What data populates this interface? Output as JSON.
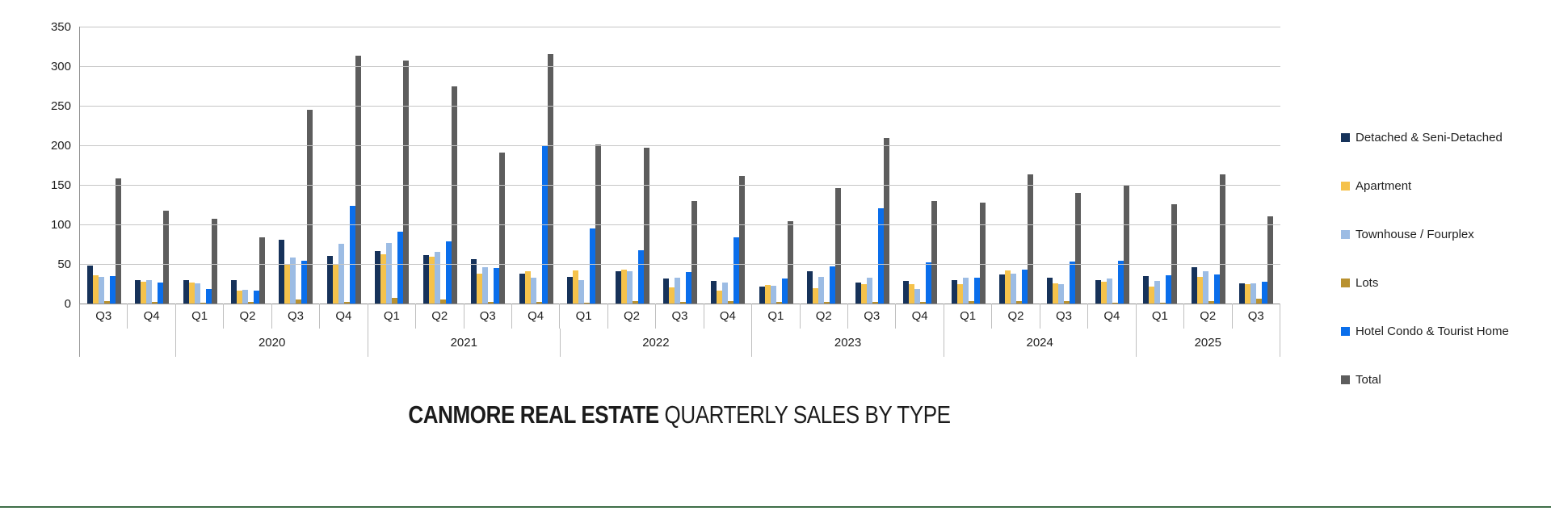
{
  "title": {
    "bold": "CANMORE REAL ESTATE",
    "regular": " QUARTERLY SALES BY TYPE"
  },
  "accents": {
    "bottom_rule_color": "#3e6e47",
    "gridline_color": "#c6c6c6",
    "axis_color": "#8f8f8f"
  },
  "chart_data": {
    "type": "bar",
    "title": "CANMORE REAL ESTATE QUARTERLY SALES BY TYPE",
    "ylabel": "",
    "xlabel": "",
    "ylim": [
      0,
      350
    ],
    "grid": true,
    "legend_position": "right",
    "y_ticks": [
      0,
      50,
      100,
      150,
      200,
      250,
      300,
      350
    ],
    "x_groups": [
      {
        "year": "",
        "quarters": [
          "Q3",
          "Q4"
        ]
      },
      {
        "year": "2020",
        "quarters": [
          "Q1",
          "Q2",
          "Q3",
          "Q4"
        ]
      },
      {
        "year": "2021",
        "quarters": [
          "Q1",
          "Q2",
          "Q3",
          "Q4"
        ]
      },
      {
        "year": "2022",
        "quarters": [
          "Q1",
          "Q2",
          "Q3",
          "Q4"
        ]
      },
      {
        "year": "2023",
        "quarters": [
          "Q1",
          "Q2",
          "Q3",
          "Q4"
        ]
      },
      {
        "year": "2024",
        "quarters": [
          "Q1",
          "Q2",
          "Q3",
          "Q4"
        ]
      },
      {
        "year": "2025",
        "quarters": [
          "Q1",
          "Q2",
          "Q3"
        ]
      }
    ],
    "series": [
      {
        "name": "Detached & Seni-Detached",
        "color": "#16325a",
        "values": [
          48,
          30,
          30,
          30,
          81,
          60,
          66,
          61,
          56,
          38,
          34,
          41,
          32,
          29,
          21,
          41,
          27,
          29,
          30,
          37,
          33,
          30,
          35,
          46,
          26
        ]
      },
      {
        "name": "Apartment",
        "color": "#f5c24b",
        "values": [
          36,
          28,
          27,
          16,
          49,
          50,
          62,
          59,
          38,
          41,
          42,
          43,
          20,
          16,
          23,
          19,
          25,
          24,
          25,
          42,
          26,
          28,
          21,
          34,
          24
        ]
      },
      {
        "name": "Townhouse / Fourplex",
        "color": "#9cbce4",
        "values": [
          34,
          30,
          26,
          17,
          58,
          76,
          77,
          65,
          46,
          33,
          30,
          41,
          33,
          27,
          22,
          34,
          33,
          18,
          33,
          38,
          24,
          32,
          29,
          41,
          26
        ]
      },
      {
        "name": "Lots",
        "color": "#b9912f",
        "values": [
          3,
          2,
          1,
          2,
          5,
          2,
          7,
          5,
          2,
          2,
          1,
          3,
          2,
          3,
          2,
          2,
          2,
          2,
          3,
          3,
          3,
          1,
          1,
          3,
          6
        ]
      },
      {
        "name": "Hotel Condo & Tourist Home",
        "color": "#0a6eeb",
        "values": [
          35,
          27,
          18,
          16,
          54,
          123,
          91,
          79,
          45,
          200,
          95,
          67,
          40,
          84,
          32,
          47,
          120,
          52,
          33,
          43,
          53,
          54,
          36,
          37,
          28
        ]
      },
      {
        "name": "Total",
        "color": "#5d5d5d",
        "values": [
          158,
          117,
          107,
          84,
          245,
          313,
          307,
          275,
          191,
          315,
          201,
          197,
          130,
          161,
          104,
          146,
          209,
          130,
          128,
          163,
          140,
          149,
          126,
          163,
          110
        ]
      }
    ]
  }
}
